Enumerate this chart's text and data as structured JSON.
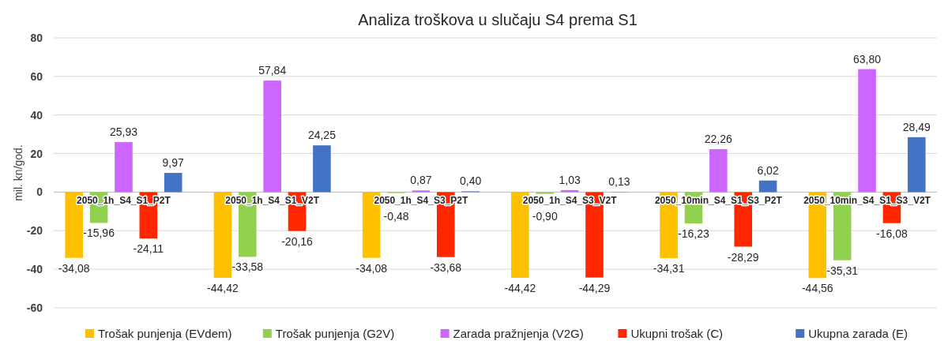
{
  "chart_data": {
    "type": "bar",
    "title": "Analiza troškova u slučaju S4 prema S1",
    "ylabel": "mil. kn/god.",
    "categories": [
      "2050_1h_S4_S1_P2T",
      "2050_1h_S4_S1_V2T",
      "2050_1h_S4_S3_P2T",
      "2050_1h_S4_S3_V2T",
      "2050_10min_S4_S1_S3_P2T",
      "2050_10min_S4_S1_S3_V2T"
    ],
    "series": [
      {
        "name": "Trošak punjenja (EVdem)",
        "color": "#ffc000",
        "values": [
          -34.08,
          -44.42,
          -34.08,
          -44.42,
          -34.31,
          -44.56
        ],
        "value_labels": [
          "-34,08",
          "-44,42",
          "-34,08",
          "-44,42",
          "-34,31",
          "-44,56"
        ]
      },
      {
        "name": "Trošak punjenja (G2V)",
        "color": "#92d050",
        "values": [
          -15.96,
          -33.58,
          -0.48,
          -0.9,
          -16.23,
          -35.31
        ],
        "value_labels": [
          "-15,96",
          "-33,58",
          "-0,48",
          "-0,90",
          "-16,23",
          "-35,31"
        ]
      },
      {
        "name": "Zarada pražnjenja (V2G)",
        "color": "#cc66ff",
        "values": [
          25.93,
          57.84,
          0.87,
          1.03,
          22.26,
          63.8
        ],
        "value_labels": [
          "25,93",
          "57,84",
          "0,87",
          "1,03",
          "22,26",
          "63,80"
        ]
      },
      {
        "name": "Ukupni trošak (C)",
        "color": "#ff2600",
        "values": [
          -24.11,
          -20.16,
          -33.68,
          -44.29,
          -28.29,
          -16.08
        ],
        "value_labels": [
          "-24,11",
          "-20,16",
          "-33,68",
          "-44,29",
          "-28,29",
          "-16,08"
        ]
      },
      {
        "name": "Ukupna zarada (E)",
        "color": "#4472c4",
        "values": [
          9.97,
          24.25,
          0.4,
          0.13,
          6.02,
          28.49
        ],
        "value_labels": [
          "9,97",
          "24,25",
          "0,40",
          "0,13",
          "6,02",
          "28,49"
        ]
      }
    ],
    "ylim": [
      -60,
      80
    ],
    "yticks": [
      -60,
      -40,
      -20,
      0,
      20,
      40,
      60,
      80
    ],
    "grid": "y",
    "legend": "bottom"
  }
}
